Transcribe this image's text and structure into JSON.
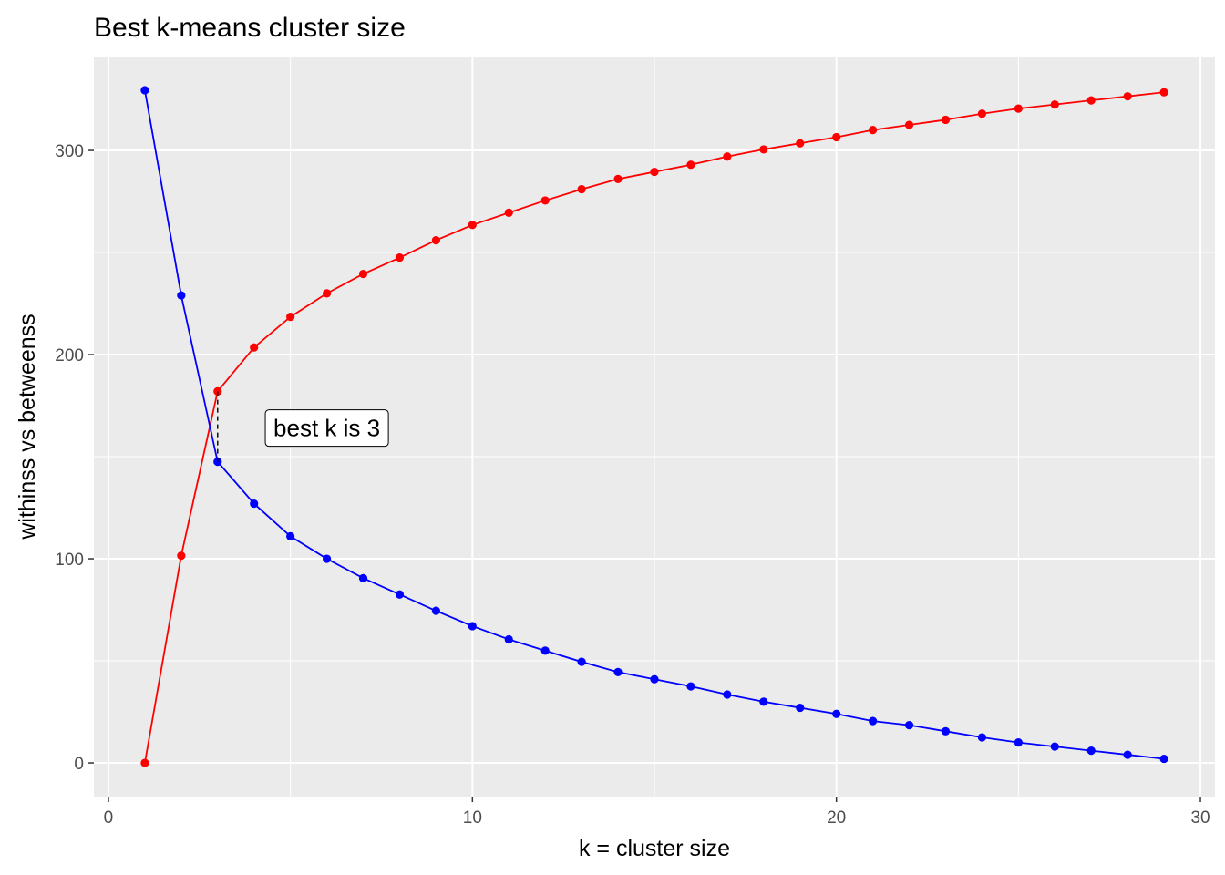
{
  "chart_data": {
    "type": "line",
    "title": "Best k-means cluster size",
    "xlabel": "k = cluster size",
    "ylabel": "withinss vs betweenss",
    "xlim": [
      -0.4,
      30.4
    ],
    "ylim": [
      -16.5,
      346
    ],
    "x_ticks": [
      0,
      10,
      20,
      30
    ],
    "y_ticks": [
      0,
      100,
      200,
      300
    ],
    "grid": true,
    "legend": "none",
    "x": [
      1,
      2,
      3,
      4,
      5,
      6,
      7,
      8,
      9,
      10,
      11,
      12,
      13,
      14,
      15,
      16,
      17,
      18,
      19,
      20,
      21,
      22,
      23,
      24,
      25,
      26,
      27,
      28,
      29
    ],
    "series": [
      {
        "color": "#ff0000",
        "values": [
          0,
          101.5,
          182,
          203.5,
          218.5,
          230,
          239.5,
          247.5,
          256,
          263.5,
          269.5,
          275.5,
          281,
          286,
          289.5,
          293,
          297,
          300.5,
          303.5,
          306.5,
          310,
          312.5,
          315,
          318,
          320.5,
          322.5,
          324.5,
          326.5,
          328.5
        ]
      },
      {
        "color": "#0000ff",
        "values": [
          329.5,
          229,
          147.5,
          127,
          111,
          100,
          90.5,
          82.5,
          74.5,
          67,
          60.5,
          55,
          49.5,
          44.5,
          41,
          37.5,
          33.5,
          30,
          27,
          24,
          20.5,
          18.5,
          15.5,
          12.5,
          10,
          8,
          6,
          4,
          2
        ]
      }
    ],
    "annotation": {
      "text": "best k is  3",
      "k": 3,
      "segment": {
        "x": 3,
        "y_from": 147.5,
        "y_to": 182
      },
      "label_x": 6,
      "label_y": 164
    },
    "colors": {
      "panel": "#ebebeb",
      "grid_major": "#ffffff",
      "tick": "#333333"
    }
  }
}
